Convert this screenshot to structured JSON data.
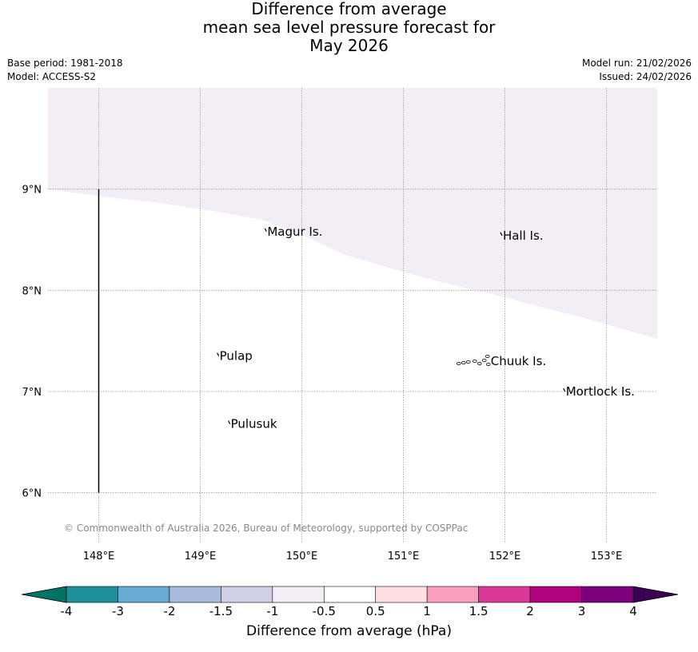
{
  "title": {
    "line1": "Difference from average",
    "line2": "mean sea level pressure forecast for",
    "line3": "May 2026"
  },
  "meta": {
    "base_period": "Base period: 1981-2018",
    "model": "Model: ACCESS-S2",
    "model_run": "Model run: 21/02/2026",
    "issued": "Issued: 24/02/2026"
  },
  "map": {
    "lon_range": [
      147.5,
      153.5
    ],
    "lat_range": [
      5.5,
      10.0
    ],
    "lon_ticks": [
      {
        "value": 148,
        "label": "148°E"
      },
      {
        "value": 149,
        "label": "149°E"
      },
      {
        "value": 150,
        "label": "150°E"
      },
      {
        "value": 151,
        "label": "151°E"
      },
      {
        "value": 152,
        "label": "152°E"
      },
      {
        "value": 153,
        "label": "153°E"
      }
    ],
    "lat_ticks": [
      {
        "value": 6,
        "label": "6°N"
      },
      {
        "value": 7,
        "label": "7°N"
      },
      {
        "value": 8,
        "label": "8°N"
      },
      {
        "value": 9,
        "label": "9°N"
      }
    ],
    "anomaly_fill_color": "#f3eef6",
    "anomaly_boundary": [
      [
        147.5,
        9.0
      ],
      [
        148.0,
        8.93
      ],
      [
        148.7,
        8.85
      ],
      [
        149.2,
        8.77
      ],
      [
        149.6,
        8.7
      ],
      [
        150.0,
        8.55
      ],
      [
        150.4,
        8.36
      ],
      [
        151.0,
        8.18
      ],
      [
        151.3,
        8.1
      ],
      [
        151.8,
        7.98
      ],
      [
        152.3,
        7.85
      ],
      [
        152.8,
        7.72
      ],
      [
        153.5,
        7.52
      ]
    ],
    "boundary_line": {
      "lon": 148.0,
      "lat_from": 6.0,
      "lat_to": 9.0
    },
    "places": [
      {
        "name": "Magur Is.",
        "lon": 149.66,
        "lat": 8.58
      },
      {
        "name": "Hall Is.",
        "lon": 151.98,
        "lat": 8.54
      },
      {
        "name": "Pulap",
        "lon": 149.19,
        "lat": 7.35
      },
      {
        "name": "Chuuk Is.",
        "lon": 151.86,
        "lat": 7.3
      },
      {
        "name": "Mortlock Is.",
        "lon": 152.6,
        "lat": 7.0
      },
      {
        "name": "Pulusuk",
        "lon": 149.3,
        "lat": 6.68
      }
    ],
    "copyright": "© Commonwealth of Australia 2026, Bureau of Meteorology, supported by COSPPac"
  },
  "colorbar": {
    "title": "Difference from average (hPa)",
    "low_extend_color": "#007368",
    "high_extend_color": "#3d0057",
    "colors": [
      "#1b9099",
      "#67aad2",
      "#a9bbdc",
      "#cfd0e6",
      "#f3eef6",
      "#ffffff",
      "#fee0e0",
      "#f99fbd",
      "#dc3898",
      "#ae027e",
      "#7c0079"
    ],
    "ticks": [
      "-4",
      "-3",
      "-2",
      "-1.5",
      "-1",
      "-0.5",
      "0.5",
      "1",
      "1.5",
      "2",
      "3",
      "4"
    ]
  }
}
